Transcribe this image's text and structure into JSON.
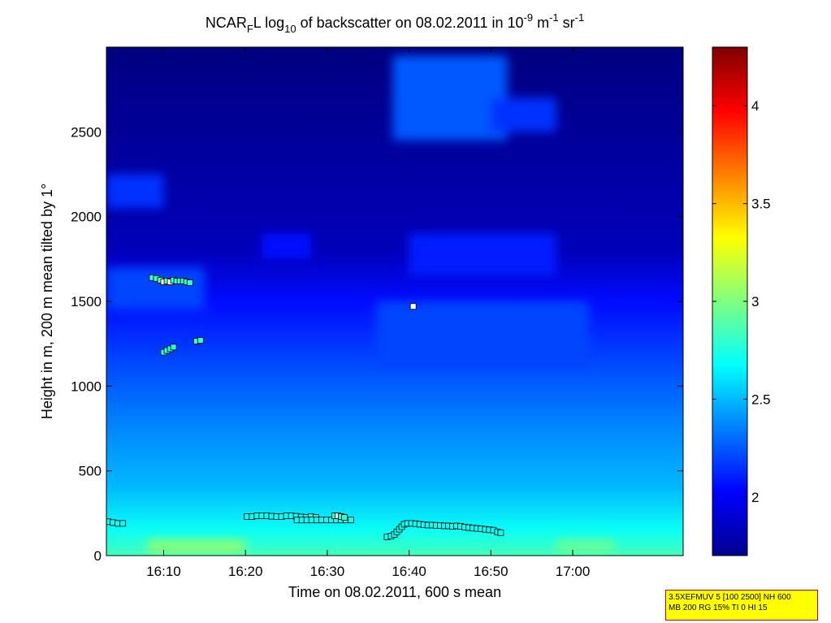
{
  "chart_data": {
    "type": "heatmap",
    "title": {
      "prefix": "NCAR",
      "sub1": "F",
      "mid1": "L log",
      "sub2": "10",
      "mid2": " of backscatter on 08.02.2011 in 10",
      "sup1": "-9",
      "mid3": " m",
      "sup2": "-1",
      "mid4": " sr",
      "sup3": "-1"
    },
    "xlabel": "Time on 08.02.2011, 600 s mean",
    "ylabel": "Height in m, 200 m mean tilted by 1°",
    "xlim_minutes": [
      963,
      1033.5
    ],
    "ylim": [
      0,
      3000
    ],
    "x_ticks": [
      {
        "value": 970,
        "label": "16:10"
      },
      {
        "value": 980,
        "label": "16:20"
      },
      {
        "value": 990,
        "label": "16:30"
      },
      {
        "value": 1000,
        "label": "16:40"
      },
      {
        "value": 1010,
        "label": "16:50"
      },
      {
        "value": 1020,
        "label": "17:00"
      }
    ],
    "y_ticks": [
      {
        "value": 0,
        "label": "0"
      },
      {
        "value": 500,
        "label": "500"
      },
      {
        "value": 1000,
        "label": "1000"
      },
      {
        "value": 1500,
        "label": "1500"
      },
      {
        "value": 2000,
        "label": "2000"
      },
      {
        "value": 2500,
        "label": "2500"
      }
    ],
    "colorbar": {
      "range": [
        1.7,
        4.3
      ],
      "ticks": [
        {
          "value": 2,
          "label": "2"
        },
        {
          "value": 2.5,
          "label": "2.5"
        },
        {
          "value": 3,
          "label": "3"
        },
        {
          "value": 3.5,
          "label": "3.5"
        },
        {
          "value": 4,
          "label": "4"
        }
      ]
    },
    "background_profile": [
      {
        "h": 0,
        "v": 2.85
      },
      {
        "h": 150,
        "v": 2.7
      },
      {
        "h": 400,
        "v": 2.5
      },
      {
        "h": 800,
        "v": 2.35
      },
      {
        "h": 1200,
        "v": 2.18
      },
      {
        "h": 1500,
        "v": 2.05
      },
      {
        "h": 1800,
        "v": 1.85
      },
      {
        "h": 3000,
        "v": 1.7
      }
    ],
    "features": [
      {
        "t0": 963,
        "t1": 975,
        "h0": 1450,
        "h1": 1700,
        "v": 2.2
      },
      {
        "t0": 963,
        "t1": 970,
        "h0": 2050,
        "h1": 2250,
        "v": 2.15
      },
      {
        "t0": 998,
        "t1": 1012,
        "h0": 2450,
        "h1": 2950,
        "v": 2.25
      },
      {
        "t0": 1010,
        "t1": 1018,
        "h0": 2500,
        "h1": 2700,
        "v": 2.15
      },
      {
        "t0": 982,
        "t1": 988,
        "h0": 1750,
        "h1": 1900,
        "v": 2.05
      },
      {
        "t0": 1000,
        "t1": 1018,
        "h0": 1650,
        "h1": 1900,
        "v": 2.1
      },
      {
        "t0": 996,
        "t1": 1022,
        "h0": 1100,
        "h1": 1500,
        "v": 2.2
      },
      {
        "t0": 968,
        "t1": 980,
        "h0": 20,
        "h1": 90,
        "v": 3.05
      },
      {
        "t0": 1018,
        "t1": 1025,
        "h0": 20,
        "h1": 90,
        "v": 2.95
      }
    ],
    "cloud_base_markers": [
      {
        "t": 963.2,
        "h": 200,
        "v": 2.7
      },
      {
        "t": 963.8,
        "h": 195,
        "v": 2.7
      },
      {
        "t": 964.4,
        "h": 190,
        "v": 2.7
      },
      {
        "t": 965.0,
        "h": 190,
        "v": 2.7
      },
      {
        "t": 968.6,
        "h": 1640,
        "v": 2.8
      },
      {
        "t": 969.1,
        "h": 1635,
        "v": 2.8
      },
      {
        "t": 969.6,
        "h": 1625,
        "v": 2.9
      },
      {
        "t": 970.0,
        "h": 1615,
        "v": 4.3
      },
      {
        "t": 970.4,
        "h": 1620,
        "v": 2.9
      },
      {
        "t": 970.8,
        "h": 1615,
        "v": 4.3
      },
      {
        "t": 971.2,
        "h": 1625,
        "v": 2.8
      },
      {
        "t": 971.6,
        "h": 1620,
        "v": 2.8
      },
      {
        "t": 972.0,
        "h": 1620,
        "v": 2.8
      },
      {
        "t": 972.4,
        "h": 1620,
        "v": 2.8
      },
      {
        "t": 972.8,
        "h": 1615,
        "v": 2.8
      },
      {
        "t": 973.2,
        "h": 1610,
        "v": 2.8
      },
      {
        "t": 970.0,
        "h": 1200,
        "v": 2.8
      },
      {
        "t": 970.4,
        "h": 1210,
        "v": 2.8
      },
      {
        "t": 970.8,
        "h": 1220,
        "v": 2.8
      },
      {
        "t": 971.2,
        "h": 1230,
        "v": 2.8
      },
      {
        "t": 974.0,
        "h": 1265,
        "v": 2.8
      },
      {
        "t": 974.5,
        "h": 1270,
        "v": 2.8
      },
      {
        "t": 980.2,
        "h": 230,
        "v": 2.7
      },
      {
        "t": 980.8,
        "h": 230,
        "v": 2.7
      },
      {
        "t": 981.4,
        "h": 235,
        "v": 2.7
      },
      {
        "t": 982.0,
        "h": 235,
        "v": 2.7
      },
      {
        "t": 982.6,
        "h": 235,
        "v": 2.7
      },
      {
        "t": 983.2,
        "h": 232,
        "v": 2.7
      },
      {
        "t": 983.8,
        "h": 230,
        "v": 2.7
      },
      {
        "t": 984.4,
        "h": 230,
        "v": 2.7
      },
      {
        "t": 985.0,
        "h": 235,
        "v": 2.7
      },
      {
        "t": 985.6,
        "h": 235,
        "v": 2.7
      },
      {
        "t": 986.2,
        "h": 232,
        "v": 2.7
      },
      {
        "t": 986.8,
        "h": 228,
        "v": 2.7
      },
      {
        "t": 987.4,
        "h": 225,
        "v": 2.7
      },
      {
        "t": 988.0,
        "h": 230,
        "v": 2.7
      },
      {
        "t": 988.6,
        "h": 225,
        "v": 2.7
      },
      {
        "t": 986.3,
        "h": 210,
        "v": 2.7
      },
      {
        "t": 986.9,
        "h": 210,
        "v": 2.7
      },
      {
        "t": 987.5,
        "h": 210,
        "v": 2.7
      },
      {
        "t": 988.1,
        "h": 210,
        "v": 2.7
      },
      {
        "t": 988.7,
        "h": 210,
        "v": 2.7
      },
      {
        "t": 989.3,
        "h": 210,
        "v": 2.7
      },
      {
        "t": 989.9,
        "h": 210,
        "v": 2.7
      },
      {
        "t": 990.5,
        "h": 210,
        "v": 2.7
      },
      {
        "t": 991.1,
        "h": 210,
        "v": 2.7
      },
      {
        "t": 991.7,
        "h": 210,
        "v": 2.7
      },
      {
        "t": 992.3,
        "h": 210,
        "v": 2.7
      },
      {
        "t": 992.9,
        "h": 210,
        "v": 2.7
      },
      {
        "t": 990.9,
        "h": 235,
        "v": 2.8
      },
      {
        "t": 991.3,
        "h": 235,
        "v": 4.3
      },
      {
        "t": 991.7,
        "h": 230,
        "v": 2.8
      },
      {
        "t": 992.1,
        "h": 225,
        "v": 2.8
      },
      {
        "t": 1000.5,
        "h": 1470,
        "v": 4.3
      },
      {
        "t": 997.3,
        "h": 110,
        "v": 2.7
      },
      {
        "t": 997.8,
        "h": 115,
        "v": 2.7
      },
      {
        "t": 998.2,
        "h": 125,
        "v": 2.7
      },
      {
        "t": 998.5,
        "h": 140,
        "v": 2.7
      },
      {
        "t": 998.8,
        "h": 155,
        "v": 2.7
      },
      {
        "t": 999.1,
        "h": 170,
        "v": 2.7
      },
      {
        "t": 999.4,
        "h": 185,
        "v": 2.7
      },
      {
        "t": 999.8,
        "h": 190,
        "v": 2.7
      },
      {
        "t": 1000.3,
        "h": 190,
        "v": 2.7
      },
      {
        "t": 1000.8,
        "h": 188,
        "v": 2.7
      },
      {
        "t": 1001.3,
        "h": 185,
        "v": 2.7
      },
      {
        "t": 1001.8,
        "h": 182,
        "v": 2.7
      },
      {
        "t": 1002.3,
        "h": 180,
        "v": 2.7
      },
      {
        "t": 1002.8,
        "h": 180,
        "v": 2.7
      },
      {
        "t": 1003.3,
        "h": 178,
        "v": 2.7
      },
      {
        "t": 1003.8,
        "h": 178,
        "v": 2.7
      },
      {
        "t": 1004.3,
        "h": 175,
        "v": 2.7
      },
      {
        "t": 1004.8,
        "h": 175,
        "v": 2.7
      },
      {
        "t": 1005.3,
        "h": 172,
        "v": 2.7
      },
      {
        "t": 1005.8,
        "h": 175,
        "v": 2.7
      },
      {
        "t": 1006.3,
        "h": 172,
        "v": 2.7
      },
      {
        "t": 1006.8,
        "h": 168,
        "v": 2.7
      },
      {
        "t": 1007.3,
        "h": 165,
        "v": 2.7
      },
      {
        "t": 1007.8,
        "h": 162,
        "v": 2.7
      },
      {
        "t": 1008.3,
        "h": 160,
        "v": 2.7
      },
      {
        "t": 1008.8,
        "h": 158,
        "v": 2.7
      },
      {
        "t": 1009.3,
        "h": 155,
        "v": 2.7
      },
      {
        "t": 1009.8,
        "h": 152,
        "v": 2.7
      },
      {
        "t": 1010.3,
        "h": 150,
        "v": 2.7
      },
      {
        "t": 1010.8,
        "h": 140,
        "v": 2.7
      },
      {
        "t": 1011.2,
        "h": 135,
        "v": 2.7
      }
    ]
  },
  "info_box": {
    "line1": "3.5XEFMUV 5 [100 2500] NH 600",
    "line2": "MB 200 RG 15% TI 0 HI 15"
  }
}
